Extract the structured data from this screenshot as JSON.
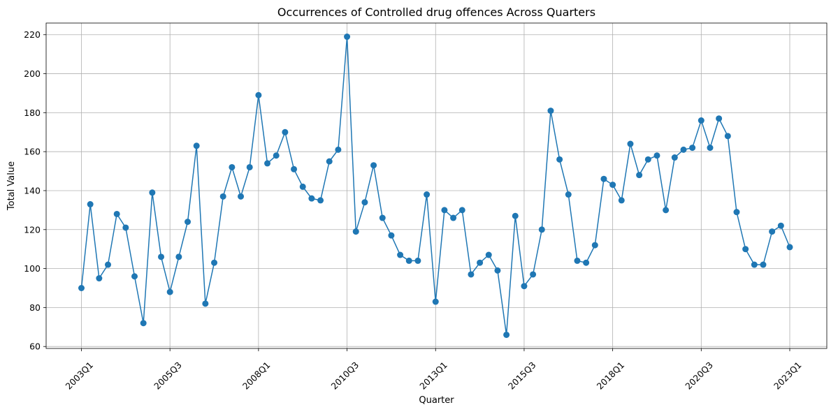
{
  "chart_data": {
    "type": "line",
    "title": "Occurrences of Controlled drug offences Across Quarters",
    "xlabel": "Quarter",
    "ylabel": "Total Value",
    "ylim": [
      59,
      226
    ],
    "y_ticks": [
      60,
      80,
      100,
      120,
      140,
      160,
      180,
      200,
      220
    ],
    "x_tick_labels": [
      "2003Q1",
      "2005Q3",
      "2008Q1",
      "2010Q3",
      "2013Q1",
      "2015Q3",
      "2018Q1",
      "2020Q3",
      "2023Q1"
    ],
    "grid": true,
    "marker": "circle",
    "line_color": "#1f77b4",
    "x": [
      "2003Q1",
      "2003Q2",
      "2003Q3",
      "2003Q4",
      "2004Q1",
      "2004Q2",
      "2004Q3",
      "2004Q4",
      "2005Q1",
      "2005Q2",
      "2005Q3",
      "2005Q4",
      "2006Q1",
      "2006Q2",
      "2006Q3",
      "2006Q4",
      "2007Q1",
      "2007Q2",
      "2007Q3",
      "2007Q4",
      "2008Q1",
      "2008Q2",
      "2008Q3",
      "2008Q4",
      "2009Q1",
      "2009Q2",
      "2009Q3",
      "2009Q4",
      "2010Q1",
      "2010Q2",
      "2010Q3",
      "2010Q4",
      "2011Q1",
      "2011Q2",
      "2011Q3",
      "2011Q4",
      "2012Q1",
      "2012Q2",
      "2012Q3",
      "2012Q4",
      "2013Q1",
      "2013Q2",
      "2013Q3",
      "2013Q4",
      "2014Q1",
      "2014Q2",
      "2014Q3",
      "2014Q4",
      "2015Q1",
      "2015Q2",
      "2015Q3",
      "2015Q4",
      "2016Q1",
      "2016Q2",
      "2016Q3",
      "2016Q4",
      "2017Q1",
      "2017Q2",
      "2017Q3",
      "2017Q4",
      "2018Q1",
      "2018Q2",
      "2018Q3",
      "2018Q4",
      "2019Q1",
      "2019Q2",
      "2019Q3",
      "2019Q4",
      "2020Q1",
      "2020Q2",
      "2020Q3",
      "2020Q4",
      "2021Q1",
      "2021Q2",
      "2021Q3",
      "2021Q4",
      "2022Q1",
      "2022Q2",
      "2022Q3",
      "2022Q4",
      "2023Q1"
    ],
    "values": [
      90,
      133,
      95,
      102,
      128,
      121,
      96,
      72,
      139,
      106,
      88,
      106,
      124,
      163,
      82,
      103,
      137,
      152,
      137,
      152,
      189,
      154,
      158,
      170,
      151,
      142,
      136,
      135,
      155,
      161,
      219,
      119,
      134,
      153,
      126,
      117,
      107,
      104,
      104,
      138,
      83,
      130,
      126,
      130,
      97,
      103,
      107,
      99,
      66,
      127,
      91,
      97,
      120,
      181,
      156,
      138,
      104,
      103,
      112,
      146,
      143,
      135,
      164,
      148,
      156,
      158,
      130,
      157,
      161,
      162,
      176,
      162,
      177,
      168,
      129,
      110,
      102,
      102,
      119,
      122,
      111
    ]
  }
}
